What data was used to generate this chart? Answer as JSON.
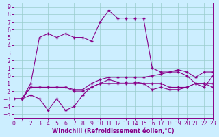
{
  "xlabel": "Windchill (Refroidissement éolien,°C)",
  "background_color": "#cceeff",
  "line_color": "#880088",
  "grid_color": "#99cccc",
  "x_ticks": [
    0,
    1,
    2,
    3,
    4,
    5,
    6,
    7,
    8,
    9,
    10,
    11,
    12,
    13,
    14,
    15,
    16,
    17,
    18,
    19,
    20,
    21,
    22,
    23
  ],
  "y_ticks": [
    -5,
    -4,
    -3,
    -2,
    -1,
    0,
    1,
    2,
    3,
    4,
    5,
    6,
    7,
    8,
    9
  ],
  "xlim": [
    0,
    23
  ],
  "ylim": [
    -5.5,
    9.5
  ],
  "series1_x": [
    0,
    1,
    2,
    3,
    4,
    5,
    6,
    7,
    8,
    9,
    10,
    11,
    12,
    13,
    14,
    15,
    16,
    17,
    18,
    19,
    20,
    21,
    22,
    23
  ],
  "series1_y": [
    -3,
    -3,
    -2.5,
    -3,
    -4.5,
    -3,
    -4.5,
    -4,
    -2.5,
    -1.5,
    -1,
    -0.5,
    -0.8,
    -0.8,
    -0.8,
    -1,
    -1.8,
    -1.5,
    -1.8,
    -1.8,
    -1.5,
    -1,
    -1,
    -1.5
  ],
  "series2_x": [
    0,
    1,
    2,
    3,
    4,
    5,
    6,
    7,
    8,
    9,
    10,
    11,
    12,
    13,
    14,
    15,
    16,
    17,
    18,
    19,
    20,
    21,
    22,
    23
  ],
  "series2_y": [
    -3,
    -3,
    -1.5,
    -1.5,
    -1.5,
    -1.5,
    -1.5,
    -2,
    -2,
    -1.5,
    -1,
    -1,
    -1,
    -1,
    -1,
    -1,
    -1,
    -1,
    -1.5,
    -1.5,
    -1.5,
    -1,
    -1,
    -1
  ],
  "series3_x": [
    0,
    1,
    2,
    3,
    4,
    5,
    6,
    7,
    8,
    9,
    10,
    11,
    12,
    13,
    14,
    15,
    16,
    17,
    18,
    19,
    20,
    21,
    22,
    23
  ],
  "series3_y": [
    -3,
    -3,
    -1.5,
    -1.5,
    -1.5,
    -1.5,
    -1.5,
    -1.8,
    -1.8,
    -1,
    -0.5,
    -0.2,
    -0.2,
    -0.2,
    -0.2,
    -0.2,
    0,
    0.2,
    0.5,
    0.8,
    0.5,
    -0.2,
    0.5,
    0.5
  ],
  "series4_x": [
    0,
    1,
    2,
    3,
    4,
    5,
    6,
    7,
    8,
    9,
    10,
    11,
    12,
    13,
    14,
    15,
    16,
    17,
    18,
    19,
    20,
    21,
    22,
    23
  ],
  "series4_y": [
    -3,
    -3,
    -1,
    5,
    5.5,
    5,
    5.5,
    5,
    5,
    4.5,
    7,
    8.5,
    7.5,
    7.5,
    7.5,
    7.5,
    1,
    0.5,
    0.5,
    0.5,
    0,
    -1,
    -1.5,
    0
  ],
  "fontsize_label": 6,
  "fontsize_tick": 5.5,
  "marker_size": 2.5,
  "line_width": 0.8
}
